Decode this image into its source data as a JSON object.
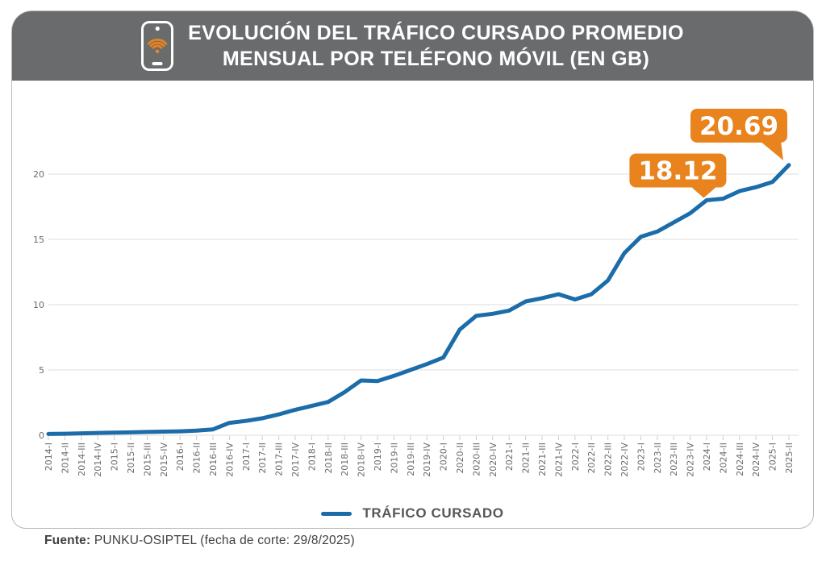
{
  "header": {
    "title_lines": [
      "EVOLUCIÓN DEL TRÁFICO CURSADO PROMEDIO",
      "MENSUAL POR TELÉFONO MÓVIL (EN GB)"
    ],
    "icon": "phone-wifi-icon"
  },
  "legend": {
    "label": "TRÁFICO CURSADO"
  },
  "footer": {
    "source_label": "Fuente:",
    "source_text": " PUNKU-OSIPTEL (fecha de corte: 29/8/2025)"
  },
  "colors": {
    "accent_orange": "#e8831d",
    "line_blue": "#1b6ca8",
    "banner_gray": "#6a6b6d",
    "gridline": "#e4e4e4",
    "tick": "#cccccc",
    "axis_text": "#6b6b6b"
  },
  "chart_data": {
    "type": "line",
    "title": "Evolución del tráfico cursado promedio mensual por teléfono móvil (en GB)",
    "xlabel": "",
    "ylabel": "",
    "ylim": [
      0,
      21.6
    ],
    "yticks": [
      0,
      5,
      10,
      15,
      20
    ],
    "grid": true,
    "legend_position": "bottom",
    "categories": [
      "2014-I",
      "2014-II",
      "2014-III",
      "2014-IV",
      "2015-I",
      "2015-II",
      "2015-III",
      "2015-IV",
      "2016-I",
      "2016-II",
      "2016-III",
      "2016-IV",
      "2017-I",
      "2017-II",
      "2017-III",
      "2017-IV",
      "2018-I",
      "2018-II",
      "2018-III",
      "2018-IV",
      "2019-I",
      "2019-II",
      "2019-III",
      "2019-IV",
      "2020-I",
      "2020-II",
      "2020-III",
      "2020-IV",
      "2021-I",
      "2021-II",
      "2021-III",
      "2021-IV",
      "2022-I",
      "2022-II",
      "2022-III",
      "2022-IV",
      "2023-I",
      "2023-II",
      "2023-III",
      "2023-IV",
      "2024-I",
      "2024-II",
      "2024-III",
      "2024-IV",
      "2025-I",
      "2025-II"
    ],
    "series": [
      {
        "name": "TRÁFICO CURSADO",
        "values": [
          0.1,
          0.12,
          0.15,
          0.18,
          0.2,
          0.22,
          0.25,
          0.28,
          0.3,
          0.35,
          0.45,
          0.95,
          1.1,
          1.3,
          1.6,
          1.95,
          2.25,
          2.55,
          3.3,
          4.2,
          4.15,
          4.55,
          5.0,
          5.45,
          5.95,
          8.1,
          9.15,
          9.3,
          9.55,
          10.25,
          10.5,
          10.8,
          10.4,
          10.8,
          11.85,
          13.95,
          15.2,
          15.6,
          16.3,
          17.0,
          18.0,
          18.12,
          18.7,
          19.0,
          19.4,
          20.69
        ]
      }
    ],
    "annotations": [
      {
        "label": "18.12",
        "category": "2024-II",
        "value": 18.12
      },
      {
        "label": "20.69",
        "category": "2025-II",
        "value": 20.69
      }
    ]
  }
}
